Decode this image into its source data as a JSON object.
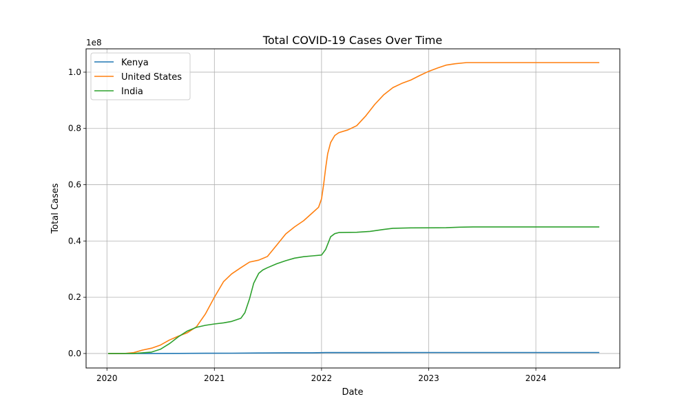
{
  "chart_data": {
    "type": "line",
    "title": "Total COVID-19 Cases Over Time",
    "xlabel": "Date",
    "ylabel": "Total Cases",
    "y_offset_label": "1e8",
    "xlim": [
      "2019-10-22",
      "2024-10-13"
    ],
    "ylim": [
      -5150000,
      108300000
    ],
    "x_ticks": [
      {
        "value": "2020-01-01",
        "label": "2020"
      },
      {
        "value": "2021-01-01",
        "label": "2021"
      },
      {
        "value": "2022-01-01",
        "label": "2022"
      },
      {
        "value": "2023-01-01",
        "label": "2023"
      },
      {
        "value": "2024-01-01",
        "label": "2024"
      }
    ],
    "y_ticks": [
      {
        "value": 0,
        "label": "0.0"
      },
      {
        "value": 20000000,
        "label": "0.2"
      },
      {
        "value": 40000000,
        "label": "0.4"
      },
      {
        "value": 60000000,
        "label": "0.6"
      },
      {
        "value": 80000000,
        "label": "0.8"
      },
      {
        "value": 100000000,
        "label": "1.0"
      }
    ],
    "grid": true,
    "legend_position": "upper-left",
    "series": [
      {
        "name": "Kenya",
        "color": "#1f77b4",
        "points": [
          [
            "2020-01-05",
            0
          ],
          [
            "2020-03-15",
            0
          ],
          [
            "2020-06-01",
            5000
          ],
          [
            "2020-09-01",
            35000
          ],
          [
            "2020-12-01",
            85000
          ],
          [
            "2021-03-01",
            110000
          ],
          [
            "2021-06-01",
            180000
          ],
          [
            "2021-09-01",
            245000
          ],
          [
            "2021-12-01",
            260000
          ],
          [
            "2022-01-15",
            315000
          ],
          [
            "2022-06-01",
            330000
          ],
          [
            "2023-01-01",
            342000
          ],
          [
            "2024-01-01",
            344000
          ],
          [
            "2024-08-04",
            344000
          ]
        ]
      },
      {
        "name": "United States",
        "color": "#ff7f0e",
        "points": [
          [
            "2020-01-05",
            0
          ],
          [
            "2020-03-01",
            0
          ],
          [
            "2020-04-01",
            300000
          ],
          [
            "2020-05-01",
            1200000
          ],
          [
            "2020-06-01",
            1900000
          ],
          [
            "2020-07-01",
            3000000
          ],
          [
            "2020-08-01",
            4800000
          ],
          [
            "2020-09-01",
            6200000
          ],
          [
            "2020-10-01",
            7400000
          ],
          [
            "2020-11-01",
            9500000
          ],
          [
            "2020-12-01",
            14000000
          ],
          [
            "2021-01-01",
            20000000
          ],
          [
            "2021-02-01",
            25500000
          ],
          [
            "2021-03-01",
            28300000
          ],
          [
            "2021-04-01",
            30500000
          ],
          [
            "2021-05-01",
            32500000
          ],
          [
            "2021-06-01",
            33200000
          ],
          [
            "2021-07-01",
            34500000
          ],
          [
            "2021-08-01",
            38500000
          ],
          [
            "2021-09-01",
            42500000
          ],
          [
            "2021-10-01",
            45000000
          ],
          [
            "2021-11-01",
            47200000
          ],
          [
            "2021-12-01",
            50000000
          ],
          [
            "2021-12-22",
            52000000
          ],
          [
            "2022-01-01",
            55000000
          ],
          [
            "2022-01-08",
            60000000
          ],
          [
            "2022-01-15",
            66000000
          ],
          [
            "2022-01-22",
            71000000
          ],
          [
            "2022-02-01",
            75000000
          ],
          [
            "2022-02-15",
            77500000
          ],
          [
            "2022-03-01",
            78500000
          ],
          [
            "2022-04-01",
            79500000
          ],
          [
            "2022-05-01",
            81000000
          ],
          [
            "2022-06-01",
            84500000
          ],
          [
            "2022-07-01",
            88500000
          ],
          [
            "2022-08-01",
            92000000
          ],
          [
            "2022-09-01",
            94500000
          ],
          [
            "2022-10-01",
            96000000
          ],
          [
            "2022-11-01",
            97200000
          ],
          [
            "2022-12-01",
            98800000
          ],
          [
            "2023-01-01",
            100300000
          ],
          [
            "2023-02-01",
            101500000
          ],
          [
            "2023-03-01",
            102500000
          ],
          [
            "2023-04-01",
            103000000
          ],
          [
            "2023-05-10",
            103400000
          ],
          [
            "2024-08-04",
            103400000
          ]
        ]
      },
      {
        "name": "India",
        "color": "#2ca02c",
        "points": [
          [
            "2020-01-05",
            0
          ],
          [
            "2020-04-01",
            0
          ],
          [
            "2020-06-01",
            500000
          ],
          [
            "2020-07-01",
            1500000
          ],
          [
            "2020-08-01",
            3500000
          ],
          [
            "2020-09-01",
            6000000
          ],
          [
            "2020-10-01",
            8000000
          ],
          [
            "2020-11-01",
            9300000
          ],
          [
            "2020-12-01",
            10000000
          ],
          [
            "2021-01-01",
            10500000
          ],
          [
            "2021-02-01",
            10900000
          ],
          [
            "2021-03-01",
            11400000
          ],
          [
            "2021-04-01",
            12500000
          ],
          [
            "2021-04-15",
            14500000
          ],
          [
            "2021-05-01",
            19500000
          ],
          [
            "2021-05-15",
            25000000
          ],
          [
            "2021-06-01",
            28500000
          ],
          [
            "2021-06-15",
            29700000
          ],
          [
            "2021-07-01",
            30500000
          ],
          [
            "2021-08-01",
            31900000
          ],
          [
            "2021-09-01",
            33000000
          ],
          [
            "2021-10-01",
            33900000
          ],
          [
            "2021-11-01",
            34400000
          ],
          [
            "2021-12-01",
            34700000
          ],
          [
            "2022-01-01",
            35000000
          ],
          [
            "2022-01-15",
            37000000
          ],
          [
            "2022-02-01",
            41500000
          ],
          [
            "2022-02-15",
            42600000
          ],
          [
            "2022-03-01",
            43000000
          ],
          [
            "2022-05-01",
            43100000
          ],
          [
            "2022-06-15",
            43400000
          ],
          [
            "2022-08-01",
            44100000
          ],
          [
            "2022-09-01",
            44500000
          ],
          [
            "2022-11-01",
            44660000
          ],
          [
            "2023-03-01",
            44700000
          ],
          [
            "2023-04-15",
            44900000
          ],
          [
            "2023-06-01",
            44990000
          ],
          [
            "2024-08-04",
            45000000
          ]
        ]
      }
    ]
  }
}
